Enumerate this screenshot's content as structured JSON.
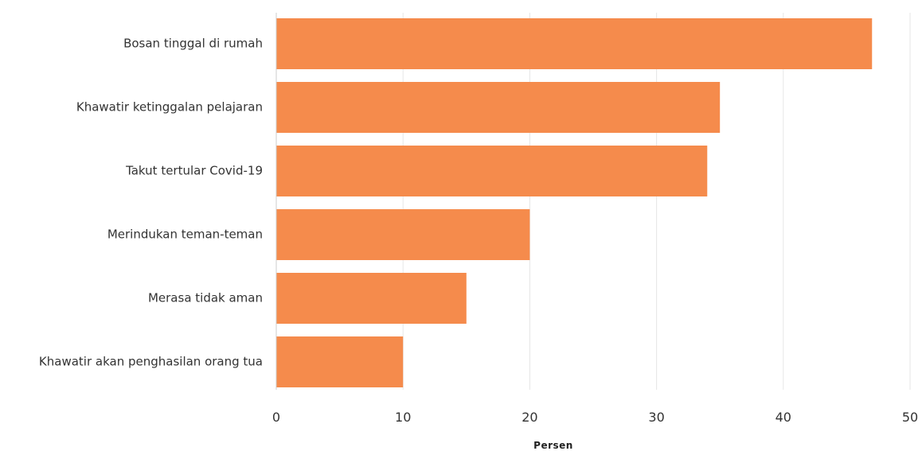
{
  "chart_data": {
    "type": "bar",
    "orientation": "horizontal",
    "title": "",
    "xlabel": "Persen",
    "ylabel": "",
    "xlim": [
      0,
      50
    ],
    "x_ticks": [
      0,
      10,
      20,
      30,
      40,
      50
    ],
    "grid": true,
    "bar_color": "#f58b4c",
    "categories": [
      "Bosan tinggal di rumah",
      "Khawatir ketinggalan pelajaran",
      "Takut tertular Covid-19",
      "Merindukan teman-teman",
      "Merasa tidak aman",
      "Khawatir akan penghasilan orang tua"
    ],
    "values": [
      47,
      35,
      34,
      20,
      15,
      10
    ]
  }
}
